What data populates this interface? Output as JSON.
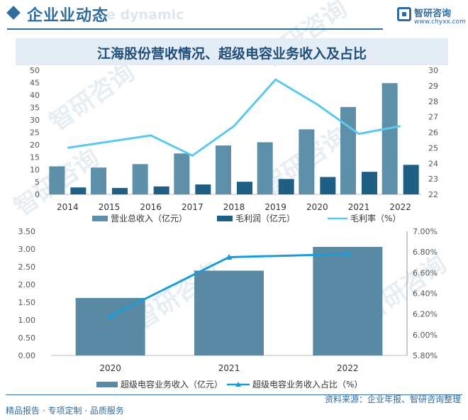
{
  "header": {
    "title": "企业业动态",
    "ghost_text": "e dynamic"
  },
  "logo": {
    "name": "智研咨询",
    "url": "www.chyxx.com"
  },
  "banner_title": "江海股份营收情况、超级电容业务收入及占比",
  "watermark": "智研咨询",
  "footer": {
    "left": "精品报告 · 专项定制 · 品质服务",
    "source": "资料来源：企业年报、智研咨询整理"
  },
  "colors": {
    "primary": "#2f6d9e",
    "bar_revenue": "#5d8fa8",
    "bar_profit": "#1e5f86",
    "line_margin": "#5bc8f0",
    "bar_supercap": "#5a8aa3",
    "line_share": "#1a9cd8"
  },
  "chart_data": [
    {
      "type": "bar",
      "categories": [
        "2014",
        "2015",
        "2016",
        "2017",
        "2018",
        "2019",
        "2020",
        "2021",
        "2022"
      ],
      "series": [
        {
          "name": "营业总收入（亿元）",
          "type": "bar",
          "axis": "left",
          "values": [
            11.3,
            10.8,
            12.2,
            16.5,
            19.7,
            21.0,
            26.2,
            35.2,
            44.8
          ]
        },
        {
          "name": "毛利润（亿元）",
          "type": "bar",
          "axis": "left",
          "values": [
            2.8,
            2.6,
            3.2,
            4.0,
            5.1,
            6.2,
            7.0,
            9.1,
            11.9
          ]
        },
        {
          "name": "毛利率（%）",
          "type": "line",
          "axis": "right",
          "values": [
            25.0,
            25.4,
            25.8,
            24.5,
            26.4,
            29.4,
            27.8,
            25.9,
            26.4
          ]
        }
      ],
      "yticks_left": [
        "0",
        "5",
        "10",
        "15",
        "20",
        "25",
        "30",
        "35",
        "40",
        "45",
        "50"
      ],
      "yticks_right": [
        "22",
        "23",
        "24",
        "25",
        "26",
        "27",
        "28",
        "29",
        "30"
      ],
      "ylim_left": [
        0,
        50
      ],
      "ylim_right": [
        22,
        30
      ],
      "legend": "bottom",
      "grid": false
    },
    {
      "type": "bar",
      "categories": [
        "2020",
        "2021",
        "2022"
      ],
      "series": [
        {
          "name": "超级电容业务收入（亿元）",
          "type": "bar",
          "axis": "left",
          "values": [
            1.62,
            2.39,
            3.06
          ]
        },
        {
          "name": "超级电容业务收入占比（%）",
          "type": "line",
          "axis": "right",
          "values": [
            6.18,
            6.75,
            6.78
          ]
        }
      ],
      "yticks_left": [
        "0.00",
        "0.50",
        "1.00",
        "1.50",
        "2.00",
        "2.50",
        "3.00",
        "3.50"
      ],
      "yticks_right": [
        "5.80%",
        "6.00%",
        "6.20%",
        "6.40%",
        "6.60%",
        "6.80%",
        "7.00%"
      ],
      "ylim_left": [
        0,
        3.5
      ],
      "ylim_right": [
        5.8,
        7.0
      ],
      "legend": "bottom",
      "grid": false
    }
  ]
}
